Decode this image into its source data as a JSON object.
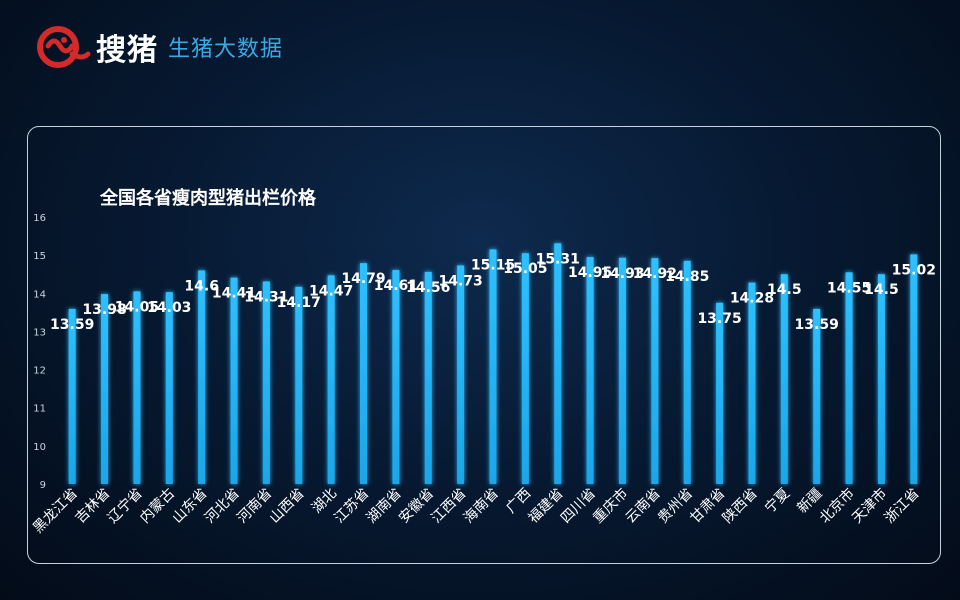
{
  "brand": {
    "logo_icon": "pig-logo-icon",
    "name": "搜猪",
    "tagline": "生猪大数据",
    "accent_color": "#39a9e6",
    "logo_color": "#d42a2a"
  },
  "chart_data": {
    "type": "bar",
    "title": "全国各省瘦肉型猪出栏价格",
    "xlabel": "",
    "ylabel": "",
    "ylim": [
      9,
      16
    ],
    "yticks": [
      9,
      10,
      11,
      12,
      13,
      14,
      15,
      16
    ],
    "grid": false,
    "bar_color": "#1aa6e8",
    "categories": [
      "黑龙江省",
      "吉林省",
      "辽宁省",
      "内蒙古",
      "山东省",
      "河北省",
      "河南省",
      "山西省",
      "湖北",
      "江苏省",
      "湖南省",
      "安徽省",
      "江西省",
      "海南省",
      "广西",
      "福建省",
      "四川省",
      "重庆市",
      "云南省",
      "贵州省",
      "甘肃省",
      "陕西省",
      "宁夏",
      "新疆",
      "北京市",
      "天津市",
      "浙江省"
    ],
    "values": [
      13.59,
      13.98,
      14.05,
      14.03,
      14.6,
      14.41,
      14.31,
      14.17,
      14.47,
      14.79,
      14.61,
      14.56,
      14.73,
      15.15,
      15.05,
      15.31,
      14.95,
      14.93,
      14.92,
      14.85,
      13.75,
      14.28,
      14.5,
      13.59,
      14.55,
      14.5,
      15.02
    ]
  }
}
